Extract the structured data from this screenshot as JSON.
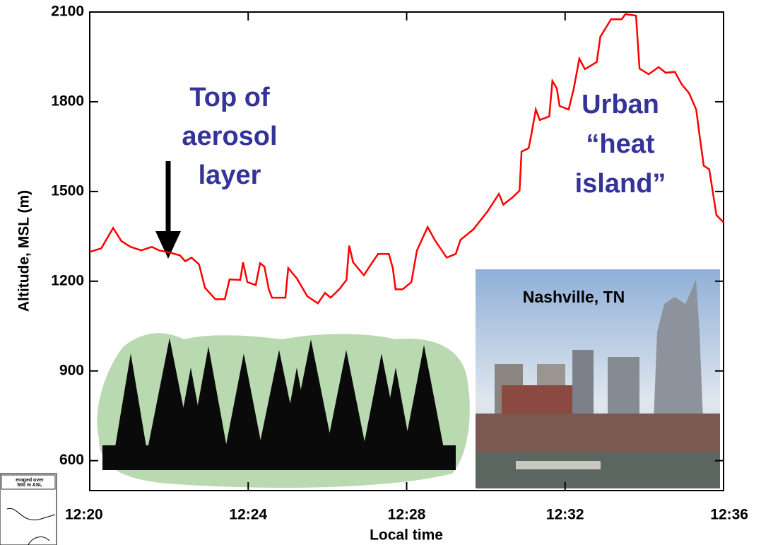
{
  "chart_data": {
    "type": "line",
    "y_label": "Altitude, MSL (m)",
    "x_label": "Local time",
    "color": "#ff0000",
    "x": [
      740.0,
      740.29,
      740.59,
      740.8,
      741.03,
      741.3,
      741.57,
      741.75,
      742.02,
      742.28,
      742.41,
      742.57,
      742.76,
      742.91,
      743.17,
      743.41,
      743.53,
      743.8,
      743.87,
      743.98,
      744.19,
      744.3,
      744.41,
      744.52,
      744.6,
      744.94,
      745.01,
      745.23,
      745.49,
      745.76,
      745.94,
      746.08,
      746.3,
      746.48,
      746.55,
      746.65,
      746.92,
      747.1,
      747.28,
      747.55,
      747.65,
      747.72,
      747.9,
      748.12,
      748.26,
      748.53,
      748.71,
      749.01,
      749.24,
      749.36,
      749.69,
      750.04,
      750.33,
      750.44,
      750.67,
      750.85,
      750.9,
      751.08,
      751.15,
      751.26,
      751.36,
      751.6,
      751.68,
      751.79,
      751.86,
      752.09,
      752.22,
      752.36,
      752.5,
      752.8,
      752.89,
      753.16,
      753.43,
      753.52,
      753.79,
      753.88,
      754.11,
      754.36,
      754.54,
      754.77,
      754.95,
      755.13,
      755.31,
      755.39,
      755.5,
      755.64,
      755.82,
      756.0
    ],
    "values": [
      1298,
      1310,
      1378,
      1334,
      1315,
      1303,
      1315,
      1303,
      1296,
      1286,
      1267,
      1279,
      1256,
      1178,
      1140,
      1140,
      1206,
      1204,
      1263,
      1197,
      1187,
      1260,
      1249,
      1173,
      1145,
      1145,
      1244,
      1209,
      1150,
      1126,
      1161,
      1145,
      1173,
      1204,
      1319,
      1263,
      1220,
      1256,
      1291,
      1291,
      1244,
      1173,
      1173,
      1197,
      1303,
      1381,
      1338,
      1279,
      1291,
      1338,
      1374,
      1433,
      1492,
      1456,
      1480,
      1503,
      1633,
      1645,
      1692,
      1774,
      1739,
      1751,
      1869,
      1845,
      1786,
      1774,
      1845,
      1944,
      1909,
      1933,
      2017,
      2076,
      2076,
      2093,
      2088,
      1911,
      1892,
      1916,
      1897,
      1900,
      1857,
      1829,
      1774,
      1692,
      1586,
      1574,
      1421,
      1397
    ],
    "xlim": [
      740,
      756
    ],
    "xticks": [
      {
        "value": 740,
        "label": "12:20"
      },
      {
        "value": 744,
        "label": "12:24"
      },
      {
        "value": 748,
        "label": "12:28"
      },
      {
        "value": 752,
        "label": "12:32"
      },
      {
        "value": 756,
        "label": "12:36"
      }
    ],
    "ylim": [
      500,
      2100
    ],
    "yticks": [
      600,
      900,
      1200,
      1500,
      1800,
      2100
    ],
    "annotations": [
      {
        "lines": [
          "Top of",
          "aerosol",
          "layer"
        ]
      },
      {
        "lines": [
          "Urban",
          "“heat",
          "island”"
        ]
      },
      {
        "lines": [
          "Nashville, TN"
        ]
      },
      {
        "lines": [
          "eraged over",
          "500 m ASL"
        ]
      }
    ]
  }
}
